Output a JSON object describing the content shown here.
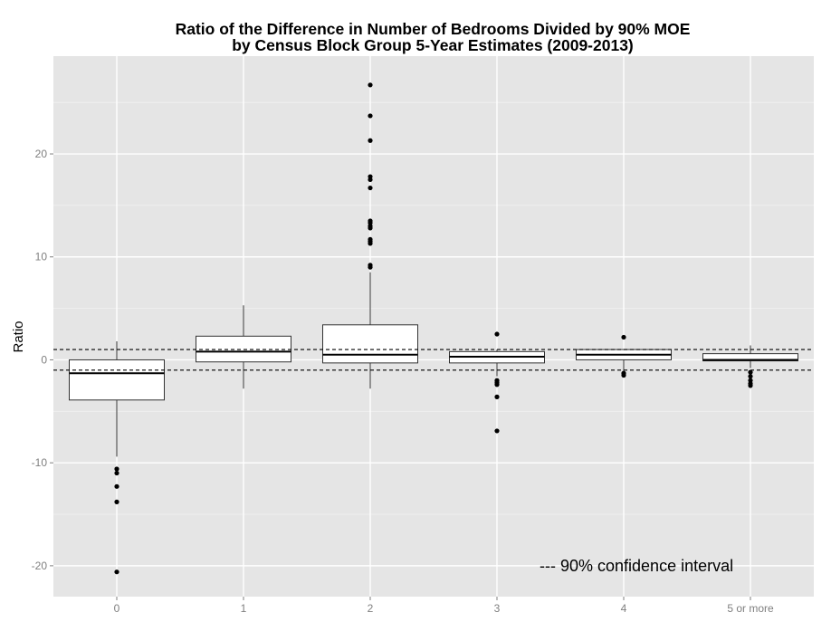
{
  "colors": {
    "panel": "#e5e5e5",
    "gridMajor": "#ffffff",
    "gridMinor": "#f2f2f2",
    "box": "#ffffff",
    "ink": "#000000",
    "tickText": "#7f7f7f"
  },
  "chart_data": {
    "type": "boxplot",
    "title": "Ratio of the Difference in Number of Bedrooms Divided by 90% MOE",
    "subtitle": "by Census Block Group 5-Year Estimates (2009-2013)",
    "xlabel": "",
    "ylabel": "Ratio",
    "ylim": [
      -23,
      29.5
    ],
    "yticks": [
      -20,
      -10,
      0,
      10,
      20
    ],
    "grid": true,
    "categories": [
      "0",
      "1",
      "2",
      "3",
      "4",
      "5 or more"
    ],
    "boxes": [
      {
        "category": "0",
        "whisker_low": -9.4,
        "q1": -3.9,
        "median": -1.3,
        "q3": 0.0,
        "whisker_high": 1.8,
        "outliers": [
          -10.6,
          -11.0,
          -12.3,
          -13.8,
          -20.6
        ]
      },
      {
        "category": "1",
        "whisker_low": -2.8,
        "q1": -0.2,
        "median": 0.8,
        "q3": 2.3,
        "whisker_high": 5.3,
        "outliers": []
      },
      {
        "category": "2",
        "whisker_low": -2.8,
        "q1": -0.3,
        "median": 0.5,
        "q3": 3.4,
        "whisker_high": 8.5,
        "outliers": [
          9.0,
          9.2,
          11.3,
          11.5,
          11.7,
          12.8,
          13.0,
          13.3,
          13.5,
          16.7,
          17.5,
          17.8,
          21.3,
          23.7,
          26.7
        ]
      },
      {
        "category": "3",
        "whisker_low": -1.6,
        "q1": -0.3,
        "median": 0.3,
        "q3": 0.8,
        "whisker_high": 1.0,
        "outliers": [
          2.5,
          -2.0,
          -2.2,
          -2.4,
          -3.6,
          -6.9
        ]
      },
      {
        "category": "4",
        "whisker_low": -1.2,
        "q1": 0.0,
        "median": 0.5,
        "q3": 1.0,
        "whisker_high": 1.0,
        "outliers": [
          2.2,
          -1.3,
          -1.5
        ]
      },
      {
        "category": "5 or more",
        "whisker_low": -0.8,
        "q1": -0.1,
        "median": 0.0,
        "q3": 0.6,
        "whisker_high": 1.4,
        "outliers": [
          -1.2,
          -1.6,
          -2.0,
          -2.3,
          -2.5
        ]
      }
    ],
    "reference_lines": [
      1,
      -1
    ],
    "annotation": "--- 90% confidence interval"
  }
}
